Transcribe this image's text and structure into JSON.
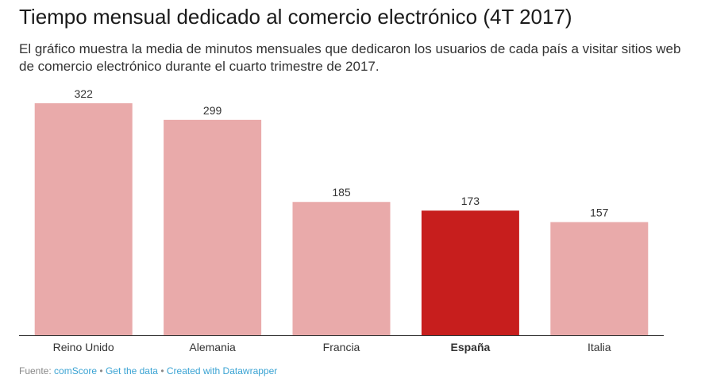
{
  "title": "Tiempo mensual dedicado al comercio electrónico (4T 2017)",
  "subtitle": "El gráfico muestra la media de minutos mensuales que dedicaron los usuarios de cada país a visitar sitios web de comercio electrónico durante el cuarto trimestre de 2017.",
  "footer": {
    "source_label": "Fuente: ",
    "source_link": "comScore",
    "separator": " • ",
    "get_data": "Get the data",
    "created_with": "Created with Datawrapper"
  },
  "colors": {
    "default_bar": "#e9aaaa",
    "highlight_bar": "#c71e1d",
    "axis": "#333333",
    "label": "#333333"
  },
  "chart_data": {
    "type": "bar",
    "categories": [
      "Reino Unido",
      "Alemania",
      "Francia",
      "España",
      "Italia"
    ],
    "values": [
      322,
      299,
      185,
      173,
      157
    ],
    "highlight": "España",
    "ylim": [
      0,
      322
    ],
    "xlabel": "",
    "ylabel": "",
    "grid": false
  }
}
